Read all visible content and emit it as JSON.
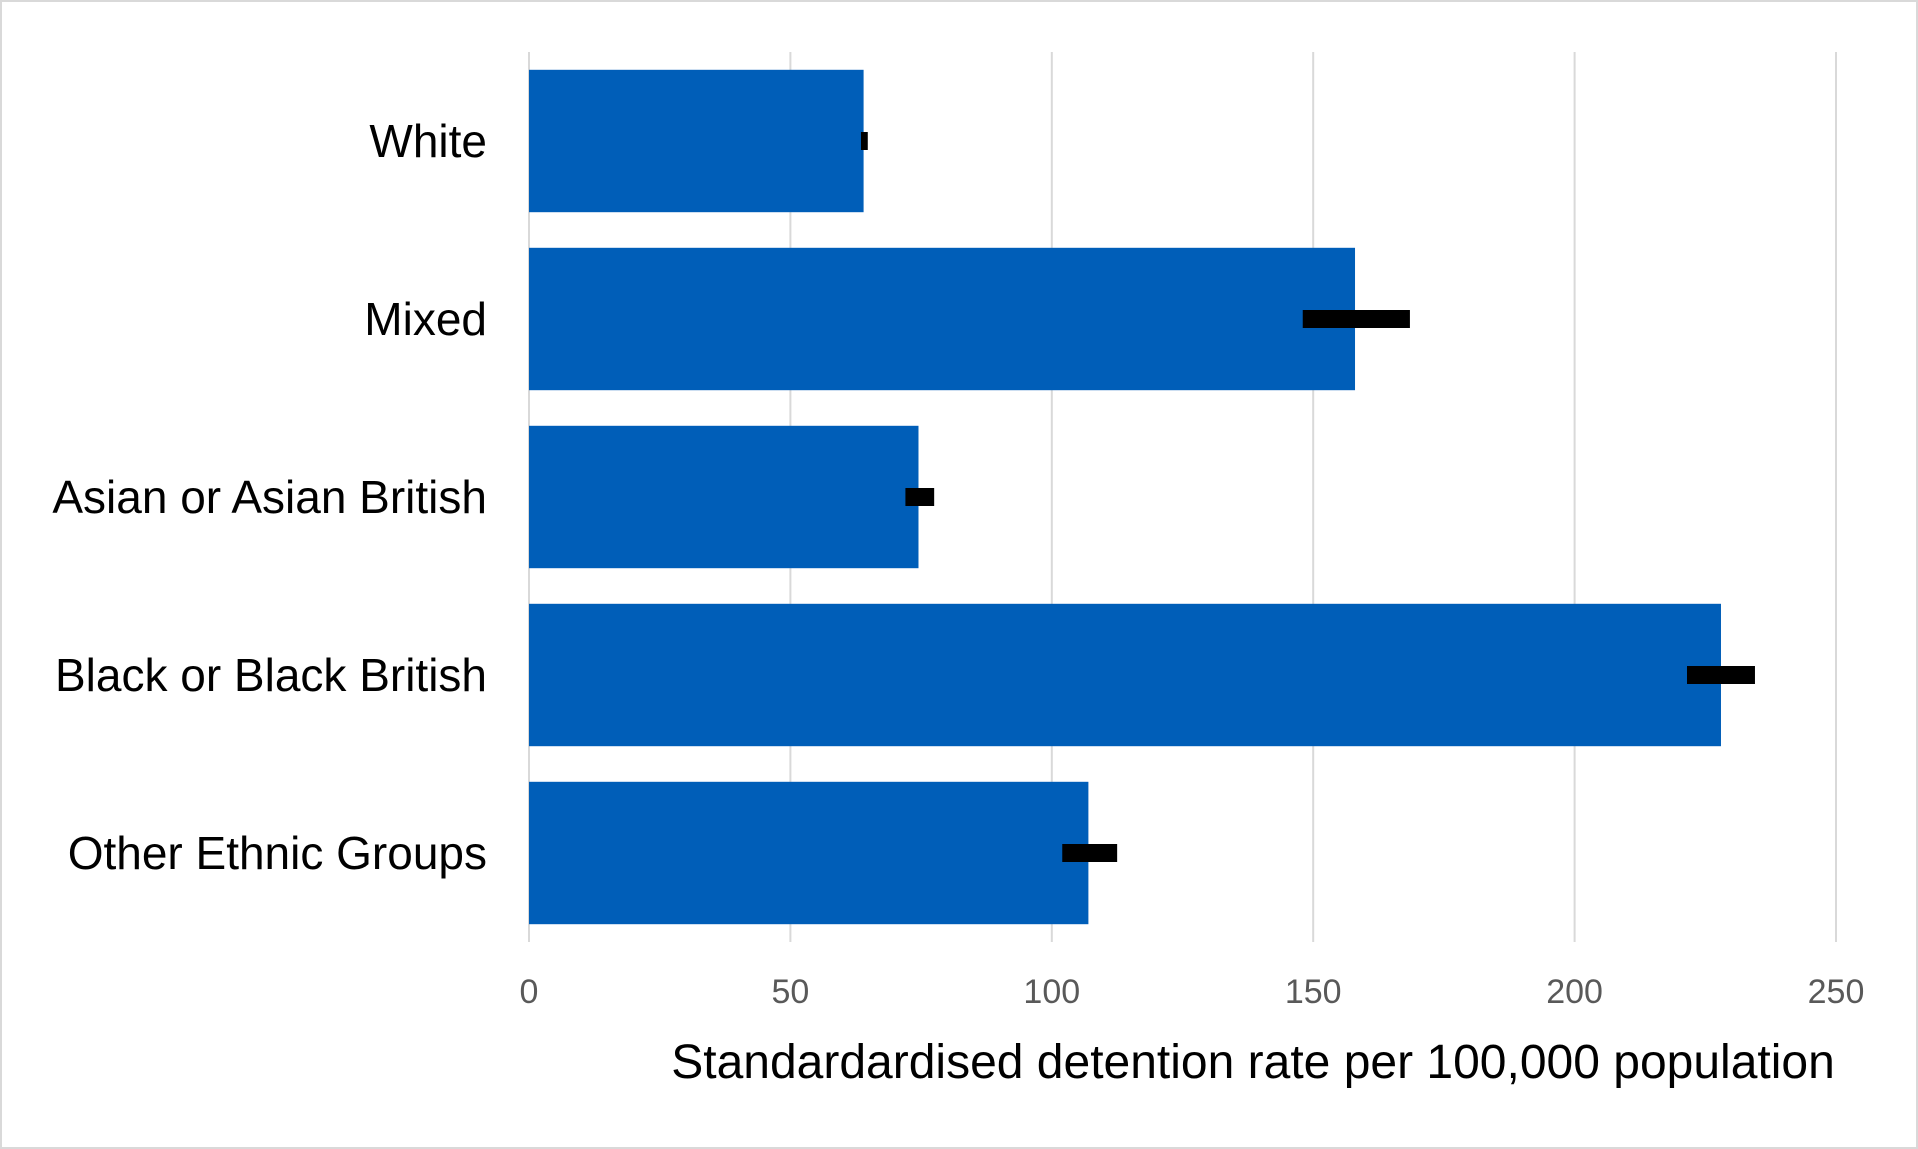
{
  "chart_data": {
    "type": "bar",
    "orientation": "horizontal",
    "title": "",
    "xlabel": "Standardardised detention rate per 100,000 population",
    "ylabel": "",
    "xlim": [
      0,
      250
    ],
    "x_ticks": [
      0,
      50,
      100,
      150,
      200,
      250
    ],
    "x_tick_labels": [
      "0",
      "50",
      "100",
      "150",
      "200",
      "250"
    ],
    "grid": "vertical",
    "legend": "none",
    "categories": [
      "White",
      "Mixed",
      "Asian or Asian British",
      "Black or Black British",
      "Other Ethnic Groups"
    ],
    "values": [
      64,
      158,
      74.5,
      228,
      107
    ],
    "error_ranges": [
      [
        63.5,
        64.8
      ],
      [
        148,
        168.5
      ],
      [
        72,
        77.5
      ],
      [
        221.5,
        234.5
      ],
      [
        102,
        112.5
      ]
    ],
    "colors": {
      "bar": "#005EB8",
      "error_bar": "#000000",
      "grid": "#d9d9d9"
    }
  }
}
